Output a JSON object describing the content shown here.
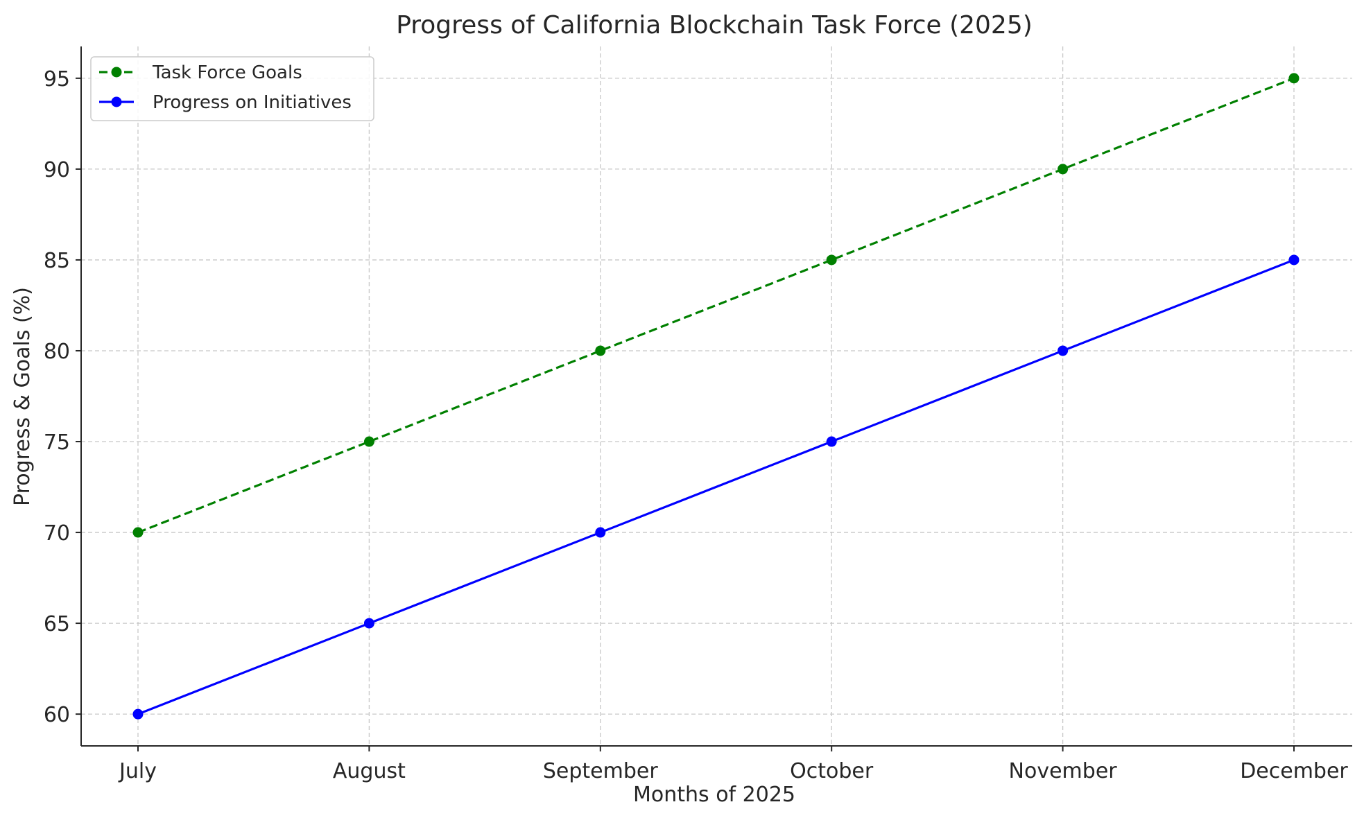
{
  "chart_data": {
    "type": "line",
    "title": "Progress of California Blockchain Task Force (2025)",
    "xlabel": "Months of 2025",
    "ylabel": "Progress & Goals (%)",
    "categories": [
      "July",
      "August",
      "September",
      "October",
      "November",
      "December"
    ],
    "ylim": [
      58.25,
      96.75
    ],
    "yticks": [
      60,
      65,
      70,
      75,
      80,
      85,
      90,
      95
    ],
    "grid": true,
    "legend_position": "top-left",
    "series": [
      {
        "name": "Task Force Goals",
        "values": [
          70,
          75,
          80,
          85,
          90,
          95
        ],
        "color": "#008000",
        "line_style": "dashed",
        "marker": "circle"
      },
      {
        "name": "Progress on Initiatives",
        "values": [
          60,
          65,
          70,
          75,
          80,
          85
        ],
        "color": "#0000ff",
        "line_style": "solid",
        "marker": "circle"
      }
    ]
  }
}
